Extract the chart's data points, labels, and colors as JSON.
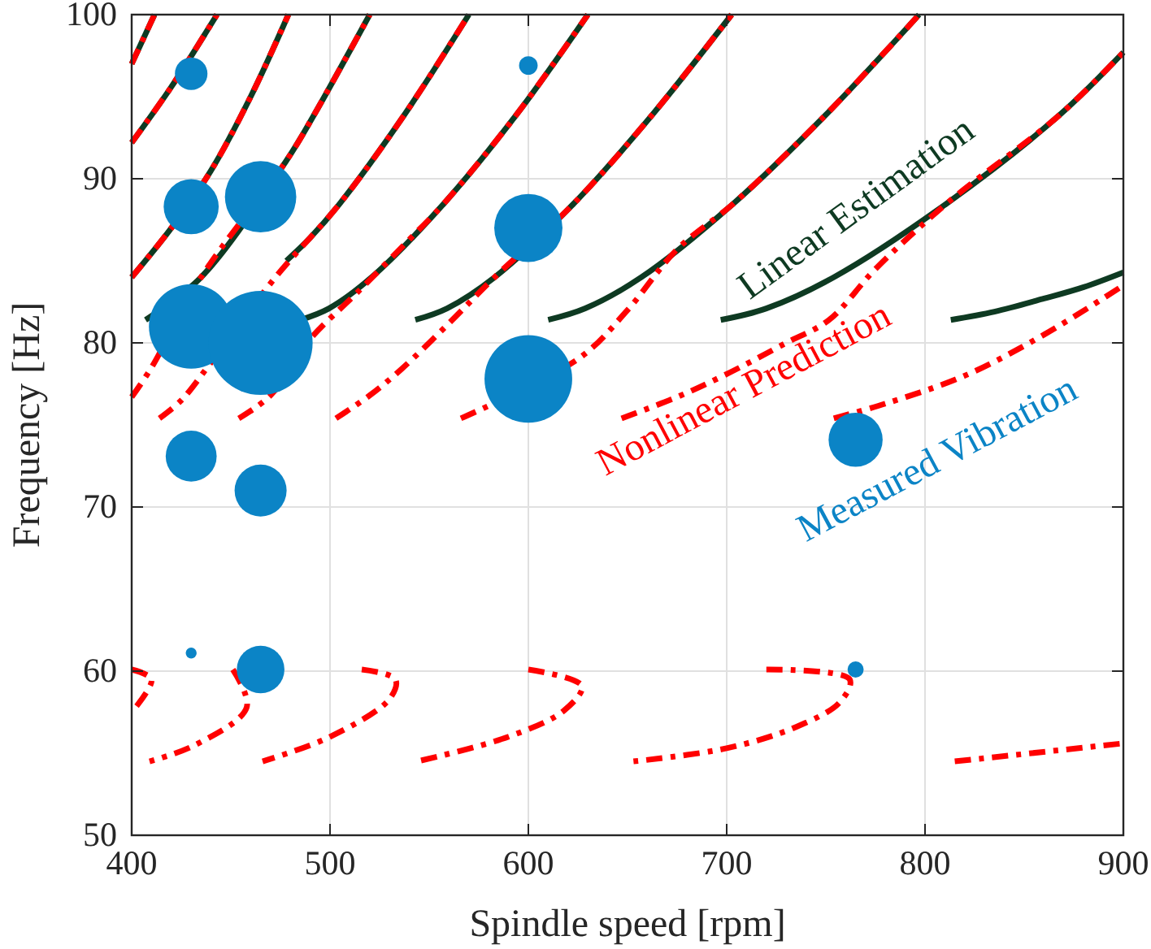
{
  "chart_data": {
    "type": "line",
    "xlabel": "Spindle speed [rpm]",
    "ylabel": "Frequency [Hz]",
    "xlim": [
      400,
      900
    ],
    "ylim": [
      50,
      100
    ],
    "xticks": [
      400,
      500,
      600,
      700,
      800,
      900
    ],
    "yticks": [
      50,
      60,
      70,
      80,
      90,
      100
    ],
    "grid": true,
    "legend": false,
    "series": [
      {
        "name": "Linear Estimation",
        "type": "line",
        "color": "#0e3a22",
        "line_style": "solid",
        "x": [
          400,
          411.5,
          null,
          400,
          420,
          443,
          null,
          400,
          420,
          440,
          460,
          479,
          null,
          407,
          435,
          478,
          492,
          520,
          null,
          478,
          490,
          505,
          537.5,
          570,
          null,
          485,
          499.5,
          521,
          557.5,
          594,
          630,
          null,
          543,
          559,
          583,
          623,
          662.5,
          702.5,
          null,
          610,
          628.7,
          657,
          703.5,
          750,
          797,
          null,
          697,
          720,
          754,
          811,
          868,
          900,
          null,
          813,
          835,
          860,
          880,
          900
        ],
        "values": [
          97,
          100,
          null,
          92.2,
          95.6,
          100,
          null,
          84,
          87,
          90.5,
          95,
          100,
          null,
          81.4,
          84,
          91.1,
          93.9,
          100,
          null,
          85,
          86.4,
          88.5,
          93.9,
          100,
          null,
          81.4,
          82.1,
          84,
          88.5,
          93.9,
          100,
          null,
          81.4,
          82.1,
          84,
          88.5,
          93.9,
          100,
          null,
          81.4,
          82.1,
          84,
          88.5,
          93.9,
          100,
          null,
          81.4,
          82.1,
          84,
          88.5,
          93.9,
          97.7,
          null,
          81.4,
          81.9,
          82.7,
          83.4,
          84.3
        ]
      },
      {
        "name": "Nonlinear Prediction",
        "type": "line",
        "color": "#ff0000",
        "line_style": "dashdot",
        "x": [
          400,
          411.5,
          null,
          400,
          420,
          443,
          null,
          400,
          420,
          440,
          460,
          479,
          null,
          400,
          410,
          435,
          478,
          492,
          520,
          null,
          414,
          425,
          440,
          472.5,
          505,
          537.5,
          570,
          null,
          454,
          470,
          489,
          514,
          540,
          557.5,
          594,
          630,
          null,
          503,
          520,
          536,
          560,
          583,
          623,
          662.5,
          702.5,
          null,
          566,
          626,
          650,
          675,
          703.5,
          750,
          797,
          null,
          647,
          675,
          700,
          730,
          751.6,
          775,
          811,
          868,
          900,
          null,
          754,
          780,
          820,
          860,
          900,
          null,
          400,
          410,
          400,
          null,
          451,
          458,
          432,
          409,
          null,
          516,
          533,
          530,
          500,
          466,
          null,
          600,
          627,
          618,
          590,
          544,
          null,
          720,
          762,
          757,
          735,
          700,
          653,
          null,
          815,
          900
        ],
        "values": [
          97,
          100,
          null,
          92.2,
          95.6,
          100,
          null,
          84,
          87,
          90.5,
          95,
          100,
          null,
          76.7,
          78.5,
          84,
          91.1,
          93.9,
          100,
          null,
          75.4,
          76.5,
          78.8,
          84,
          88.5,
          93.9,
          100,
          null,
          75.4,
          76.8,
          80.1,
          83.1,
          86.3,
          88.5,
          93.9,
          100,
          null,
          75.4,
          76.8,
          78.4,
          81.2,
          84,
          88.5,
          93.9,
          100,
          null,
          75.4,
          79.1,
          82,
          85.7,
          88.5,
          93.9,
          100,
          null,
          75.4,
          76.7,
          78.1,
          80,
          81.4,
          84.5,
          88.5,
          93.9,
          97.7,
          null,
          75.4,
          76.3,
          78,
          80.5,
          83.5,
          null,
          60.1,
          59.5,
          57.5,
          null,
          60.1,
          57.8,
          55.5,
          54.5,
          null,
          60.1,
          59.5,
          58.3,
          56,
          54.5,
          null,
          60.1,
          59.1,
          57.6,
          56,
          54.5,
          null,
          60.1,
          59.5,
          58.1,
          56.6,
          55.3,
          54.5,
          null,
          54.5,
          55.6
        ]
      },
      {
        "name": "Measured Vibration",
        "type": "bubble",
        "color": "#0b84c6",
        "marker": "circle",
        "x": [
          430,
          600,
          430,
          465,
          600,
          430,
          465,
          600,
          430,
          465,
          765,
          430,
          465,
          765
        ],
        "values": [
          96.4,
          96.9,
          88.3,
          88.9,
          87,
          81,
          80,
          77.8,
          73.1,
          71,
          74.1,
          61.1,
          60.1,
          60.1
        ],
        "sizes": [
          0.098,
          0.032,
          0.28,
          0.47,
          0.43,
          0.66,
          1,
          0.71,
          0.24,
          0.25,
          0.27,
          0.011,
          0.21,
          0.024
        ]
      }
    ]
  }
}
